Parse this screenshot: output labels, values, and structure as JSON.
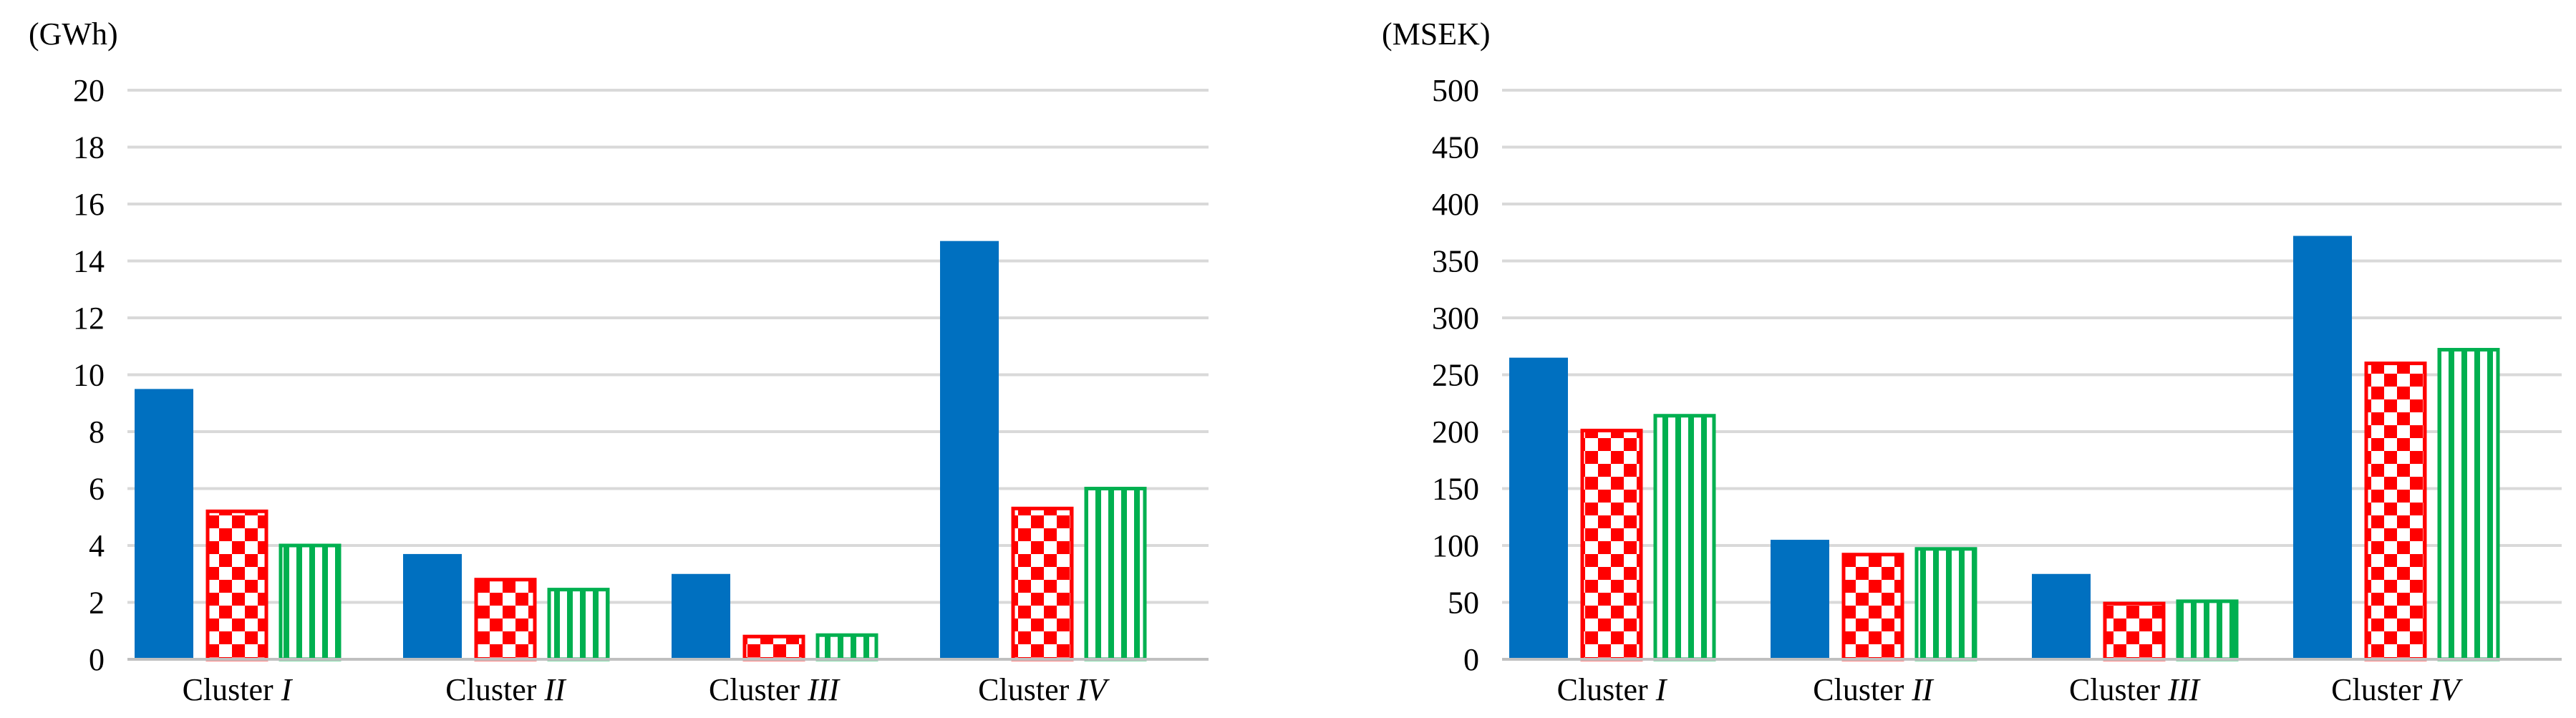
{
  "colors": {
    "blue": "#0070C0",
    "red": "#FF0000",
    "green": "#00B050",
    "grid": "#D9D9D9"
  },
  "chart_data": [
    {
      "type": "bar",
      "title": "",
      "unit_label": "(GWh)",
      "ylim": [
        0,
        20
      ],
      "yticks": [
        0,
        2,
        4,
        6,
        8,
        10,
        12,
        14,
        16,
        18,
        20
      ],
      "grid": true,
      "legend": "none",
      "categories": [
        {
          "label": "Cluster ",
          "numeral": "I"
        },
        {
          "label": "Cluster ",
          "numeral": "II"
        },
        {
          "label": "Cluster ",
          "numeral": "III"
        },
        {
          "label": "Cluster ",
          "numeral": "IV"
        }
      ],
      "series": [
        {
          "pattern": "solid",
          "color": "#0070C0",
          "values": [
            9.5,
            3.7,
            3.0,
            14.7
          ]
        },
        {
          "pattern": "checkerboard",
          "color": "#FF0000",
          "values": [
            5.2,
            2.8,
            0.8,
            5.3
          ]
        },
        {
          "pattern": "vertical-stripes",
          "color": "#00B050",
          "values": [
            4.0,
            2.45,
            0.85,
            6.0
          ]
        }
      ]
    },
    {
      "type": "bar",
      "title": "",
      "unit_label": "(MSEK)",
      "ylim": [
        0,
        500
      ],
      "yticks": [
        0,
        50,
        100,
        150,
        200,
        250,
        300,
        350,
        400,
        450,
        500
      ],
      "grid": true,
      "legend": "none",
      "categories": [
        {
          "label": "Cluster ",
          "numeral": "I"
        },
        {
          "label": "Cluster ",
          "numeral": "II"
        },
        {
          "label": "Cluster ",
          "numeral": "III"
        },
        {
          "label": "Cluster ",
          "numeral": "IV"
        }
      ],
      "series": [
        {
          "pattern": "solid",
          "color": "#0070C0",
          "values": [
            265,
            105,
            75,
            372
          ]
        },
        {
          "pattern": "checkerboard",
          "color": "#FF0000",
          "values": [
            201,
            92,
            49,
            260
          ]
        },
        {
          "pattern": "vertical-stripes",
          "color": "#00B050",
          "values": [
            214,
            97,
            51,
            272
          ]
        }
      ]
    }
  ]
}
